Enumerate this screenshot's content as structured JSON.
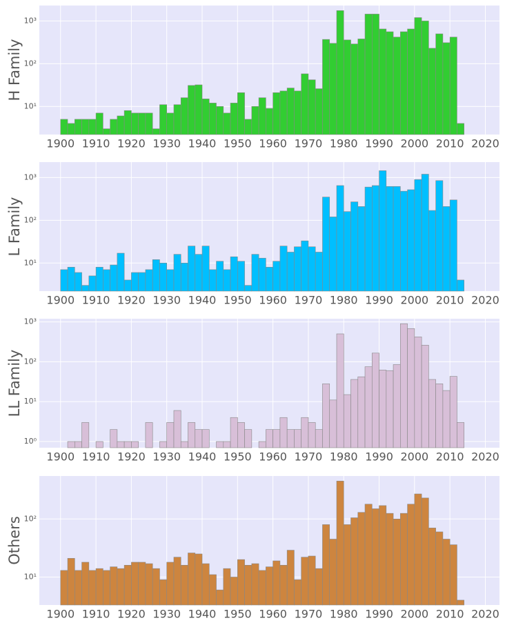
{
  "chart_data": [
    {
      "type": "histogram",
      "ylabel": "H Family",
      "color": "#32cd32",
      "log_y": true,
      "grid": true,
      "bins": [
        1900,
        1902,
        1904,
        1906,
        1908,
        1910,
        1912,
        1914,
        1916,
        1918,
        1920,
        1922,
        1924,
        1926,
        1928,
        1930,
        1932,
        1934,
        1936,
        1938,
        1940,
        1942,
        1944,
        1946,
        1948,
        1950,
        1952,
        1954,
        1956,
        1958,
        1960,
        1962,
        1964,
        1966,
        1968,
        1970,
        1972,
        1974,
        1976,
        1978,
        1980,
        1982,
        1984,
        1986,
        1988,
        1990,
        1992,
        1994,
        1996,
        1998,
        2000,
        2002,
        2004,
        2006,
        2008,
        2010,
        2012,
        2014
      ],
      "counts": [
        5,
        4,
        5,
        5,
        5,
        7,
        3,
        5,
        6,
        8,
        7,
        7,
        7,
        3,
        11,
        7,
        11,
        16,
        31,
        32,
        15,
        12,
        10,
        7,
        12,
        21,
        5,
        10,
        16,
        9,
        21,
        23,
        27,
        23,
        58,
        42,
        26,
        370,
        300,
        1750,
        360,
        290,
        380,
        1450,
        1450,
        650,
        560,
        420,
        560,
        650,
        1200,
        1000,
        230,
        500,
        310,
        420,
        4
      ],
      "xlim": [
        1894,
        2024
      ],
      "xticks": [
        1900,
        1910,
        1920,
        1930,
        1940,
        1950,
        1960,
        1970,
        1980,
        1990,
        2000,
        2010,
        2020
      ],
      "ylim": [
        2.2,
        2300
      ],
      "yticks": [
        {
          "value": 10,
          "label": "10¹"
        },
        {
          "value": 100,
          "label": "10²"
        },
        {
          "value": 1000,
          "label": "10³"
        }
      ]
    },
    {
      "type": "histogram",
      "ylabel": "L Family",
      "color": "#00bfff",
      "log_y": true,
      "grid": true,
      "bins": [
        1900,
        1902,
        1904,
        1906,
        1908,
        1910,
        1912,
        1914,
        1916,
        1918,
        1920,
        1922,
        1924,
        1926,
        1928,
        1930,
        1932,
        1934,
        1936,
        1938,
        1940,
        1942,
        1944,
        1946,
        1948,
        1950,
        1952,
        1954,
        1956,
        1958,
        1960,
        1962,
        1964,
        1966,
        1968,
        1970,
        1972,
        1974,
        1976,
        1978,
        1980,
        1982,
        1984,
        1986,
        1988,
        1990,
        1992,
        1994,
        1996,
        1998,
        2000,
        2002,
        2004,
        2006,
        2008,
        2010,
        2012,
        2014
      ],
      "counts": [
        7,
        8,
        6,
        3,
        5,
        8,
        7,
        9,
        17,
        4,
        6,
        6,
        7,
        12,
        10,
        7,
        16,
        10,
        25,
        16,
        25,
        7,
        11,
        7,
        14,
        11,
        3,
        16,
        13,
        8,
        11,
        25,
        18,
        24,
        33,
        24,
        18,
        350,
        120,
        650,
        160,
        270,
        210,
        600,
        650,
        1450,
        620,
        620,
        480,
        520,
        900,
        1200,
        170,
        850,
        210,
        300,
        4
      ],
      "xlim": [
        1894,
        2024
      ],
      "xticks": [
        1900,
        1910,
        1920,
        1930,
        1940,
        1950,
        1960,
        1970,
        1980,
        1990,
        2000,
        2010,
        2020
      ],
      "ylim": [
        2.2,
        2300
      ],
      "yticks": [
        {
          "value": 10,
          "label": "10¹"
        },
        {
          "value": 100,
          "label": "10²"
        },
        {
          "value": 1000,
          "label": "10³"
        }
      ]
    },
    {
      "type": "histogram",
      "ylabel": "LL Family",
      "color": "#d8bfd8",
      "log_y": true,
      "grid": true,
      "bins": [
        1900,
        1902,
        1904,
        1906,
        1908,
        1910,
        1912,
        1914,
        1916,
        1918,
        1920,
        1922,
        1924,
        1926,
        1928,
        1930,
        1932,
        1934,
        1936,
        1938,
        1940,
        1942,
        1944,
        1946,
        1948,
        1950,
        1952,
        1954,
        1956,
        1958,
        1960,
        1962,
        1964,
        1966,
        1968,
        1970,
        1972,
        1974,
        1976,
        1978,
        1980,
        1982,
        1984,
        1986,
        1988,
        1990,
        1992,
        1994,
        1996,
        1998,
        2000,
        2002,
        2004,
        2006,
        2008,
        2010,
        2012,
        2014
      ],
      "counts": [
        0,
        1,
        1,
        3,
        0,
        1,
        0,
        2,
        1,
        1,
        1,
        0,
        3,
        0,
        1,
        3,
        6,
        1,
        3,
        2,
        2,
        0,
        1,
        1,
        4,
        3,
        2,
        0,
        1,
        2,
        2,
        4,
        2,
        2,
        4,
        3,
        2,
        28,
        11,
        500,
        15,
        36,
        42,
        75,
        165,
        62,
        60,
        85,
        900,
        680,
        420,
        260,
        36,
        28,
        19,
        43,
        3
      ],
      "xlim": [
        1894,
        2024
      ],
      "xticks": [
        1900,
        1910,
        1920,
        1930,
        1940,
        1950,
        1960,
        1970,
        1980,
        1990,
        2000,
        2010,
        2020
      ],
      "ylim": [
        0.7,
        1200
      ],
      "yticks": [
        {
          "value": 1,
          "label": "10⁰"
        },
        {
          "value": 10,
          "label": "10¹"
        },
        {
          "value": 100,
          "label": "10²"
        },
        {
          "value": 1000,
          "label": "10³"
        }
      ]
    },
    {
      "type": "histogram",
      "ylabel": "Others",
      "color": "#cd853f",
      "log_y": true,
      "grid": true,
      "bins": [
        1900,
        1902,
        1904,
        1906,
        1908,
        1910,
        1912,
        1914,
        1916,
        1918,
        1920,
        1922,
        1924,
        1926,
        1928,
        1930,
        1932,
        1934,
        1936,
        1938,
        1940,
        1942,
        1944,
        1946,
        1948,
        1950,
        1952,
        1954,
        1956,
        1958,
        1960,
        1962,
        1964,
        1966,
        1968,
        1970,
        1972,
        1974,
        1976,
        1978,
        1980,
        1982,
        1984,
        1986,
        1988,
        1990,
        1992,
        1994,
        1996,
        1998,
        2000,
        2002,
        2004,
        2006,
        2008,
        2010,
        2012,
        2014
      ],
      "counts": [
        13,
        21,
        13,
        18,
        13,
        14,
        13,
        15,
        14,
        16,
        18,
        18,
        17,
        14,
        9,
        18,
        22,
        16,
        26,
        25,
        17,
        11,
        6,
        14,
        10,
        20,
        16,
        17,
        13,
        15,
        19,
        16,
        29,
        9,
        22,
        23,
        14,
        80,
        45,
        450,
        80,
        105,
        130,
        180,
        150,
        170,
        125,
        100,
        125,
        180,
        270,
        230,
        70,
        60,
        45,
        36,
        4
      ],
      "xlim": [
        1894,
        2024
      ],
      "xticks": [
        1900,
        1910,
        1920,
        1930,
        1940,
        1950,
        1960,
        1970,
        1980,
        1990,
        2000,
        2010,
        2020
      ],
      "ylim": [
        3.3,
        550
      ],
      "yticks": [
        {
          "value": 10,
          "label": "10¹"
        },
        {
          "value": 100,
          "label": "10²"
        }
      ]
    }
  ]
}
